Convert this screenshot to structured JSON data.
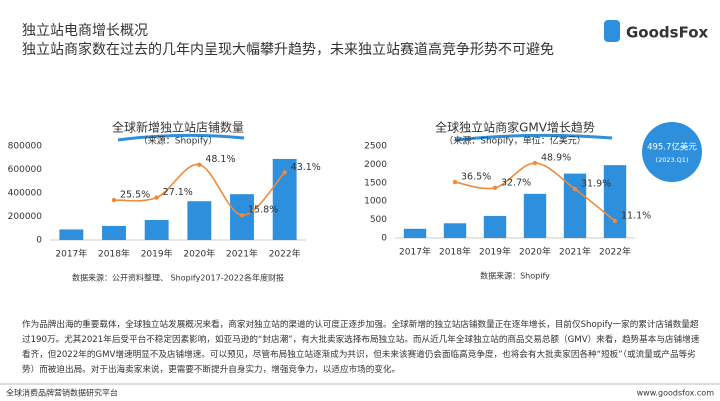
{
  "header": {
    "title": "独立站电商增长概况",
    "subtitle": "独立站商家数在过去的几年内呈现大幅攀升趋势，未来独立站赛道高竞争形势不可避免",
    "logo": "GoodsFox"
  },
  "chart_data": [
    {
      "type": "combo",
      "title": "全球新增独立站店铺数量",
      "subtitle": "（来源：Shopify）",
      "source": "数据来源：公开资料整理、 Shopify2017-2022各年度财报",
      "categories": [
        "2017年",
        "2018年",
        "2019年",
        "2020年",
        "2021年",
        "2022年"
      ],
      "ylim": [
        0,
        800000
      ],
      "yticks": [
        0,
        200000,
        400000,
        600000,
        800000
      ],
      "y2lim": [
        0,
        60
      ],
      "series": [
        {
          "type": "bar",
          "color": "#2e8fdc",
          "values": [
            90000,
            120000,
            170000,
            330000,
            390000,
            690000
          ]
        },
        {
          "type": "line",
          "axis": "y2",
          "color": "#f08a3c",
          "values": [
            null,
            25.5,
            27.1,
            48.1,
            15.8,
            43.1
          ],
          "value_labels": [
            null,
            "25.5%",
            "27.1%",
            "48.1%",
            "15.8%",
            "43.1%"
          ]
        }
      ]
    },
    {
      "type": "combo",
      "title": "全球独立站商家GMV增长趋势",
      "subtitle": "（来源：Shopify，单位：亿美元）",
      "source": "数据来源：Shopify",
      "categories": [
        "2017年",
        "2018年",
        "2019年",
        "2020年",
        "2021年",
        "2022年"
      ],
      "ylim": [
        0,
        2500
      ],
      "yticks": [
        0,
        500,
        1000,
        1500,
        2000,
        2500
      ],
      "y2lim": [
        0,
        60
      ],
      "annotation": [
        "495.7亿美元",
        "(2023.Q1)"
      ],
      "series": [
        {
          "type": "bar",
          "color": "#2e8fdc",
          "values": [
            250,
            400,
            600,
            1200,
            1750,
            1980
          ]
        },
        {
          "type": "line",
          "axis": "y2",
          "color": "#f08a3c",
          "values": [
            null,
            36.5,
            32.7,
            48.9,
            31.9,
            11.1
          ],
          "value_labels": [
            null,
            "36.5%",
            "32.7%",
            "48.9%",
            "31.9%",
            "11.1%"
          ]
        }
      ]
    }
  ],
  "body": "作为品牌出海的重要载体，全球独立站发展概况来看，商家对独立站的渠道的认可度正逐步加强。全球新增的独立站店铺数量正在逐年增长，目前仅Shopify一家的累计店铺数量超过190万。尤其2021年后受平台不稳定因素影响，如亚马逊的“封店潮”，有大批卖家选择布局独立站。而从近几年全球独立站的商品交易总额（GMV）来看，趋势基本与店铺增速看齐，但2022年的GMV增速明显不及店铺增速。可以预见，尽管布局独立站逐渐成为共识，但未来该赛道仍会面临高竞争度，也将会有大批卖家因各种“短板”（或流量或产品等劣势）而被迫出局。对于出海卖家来说，更需要不断提升自身实力，增强竞争力，以适应市场的变化。",
  "footer": {
    "left": "全球消费品牌营销数据研究平台",
    "right": "www.goodsfox.com"
  }
}
